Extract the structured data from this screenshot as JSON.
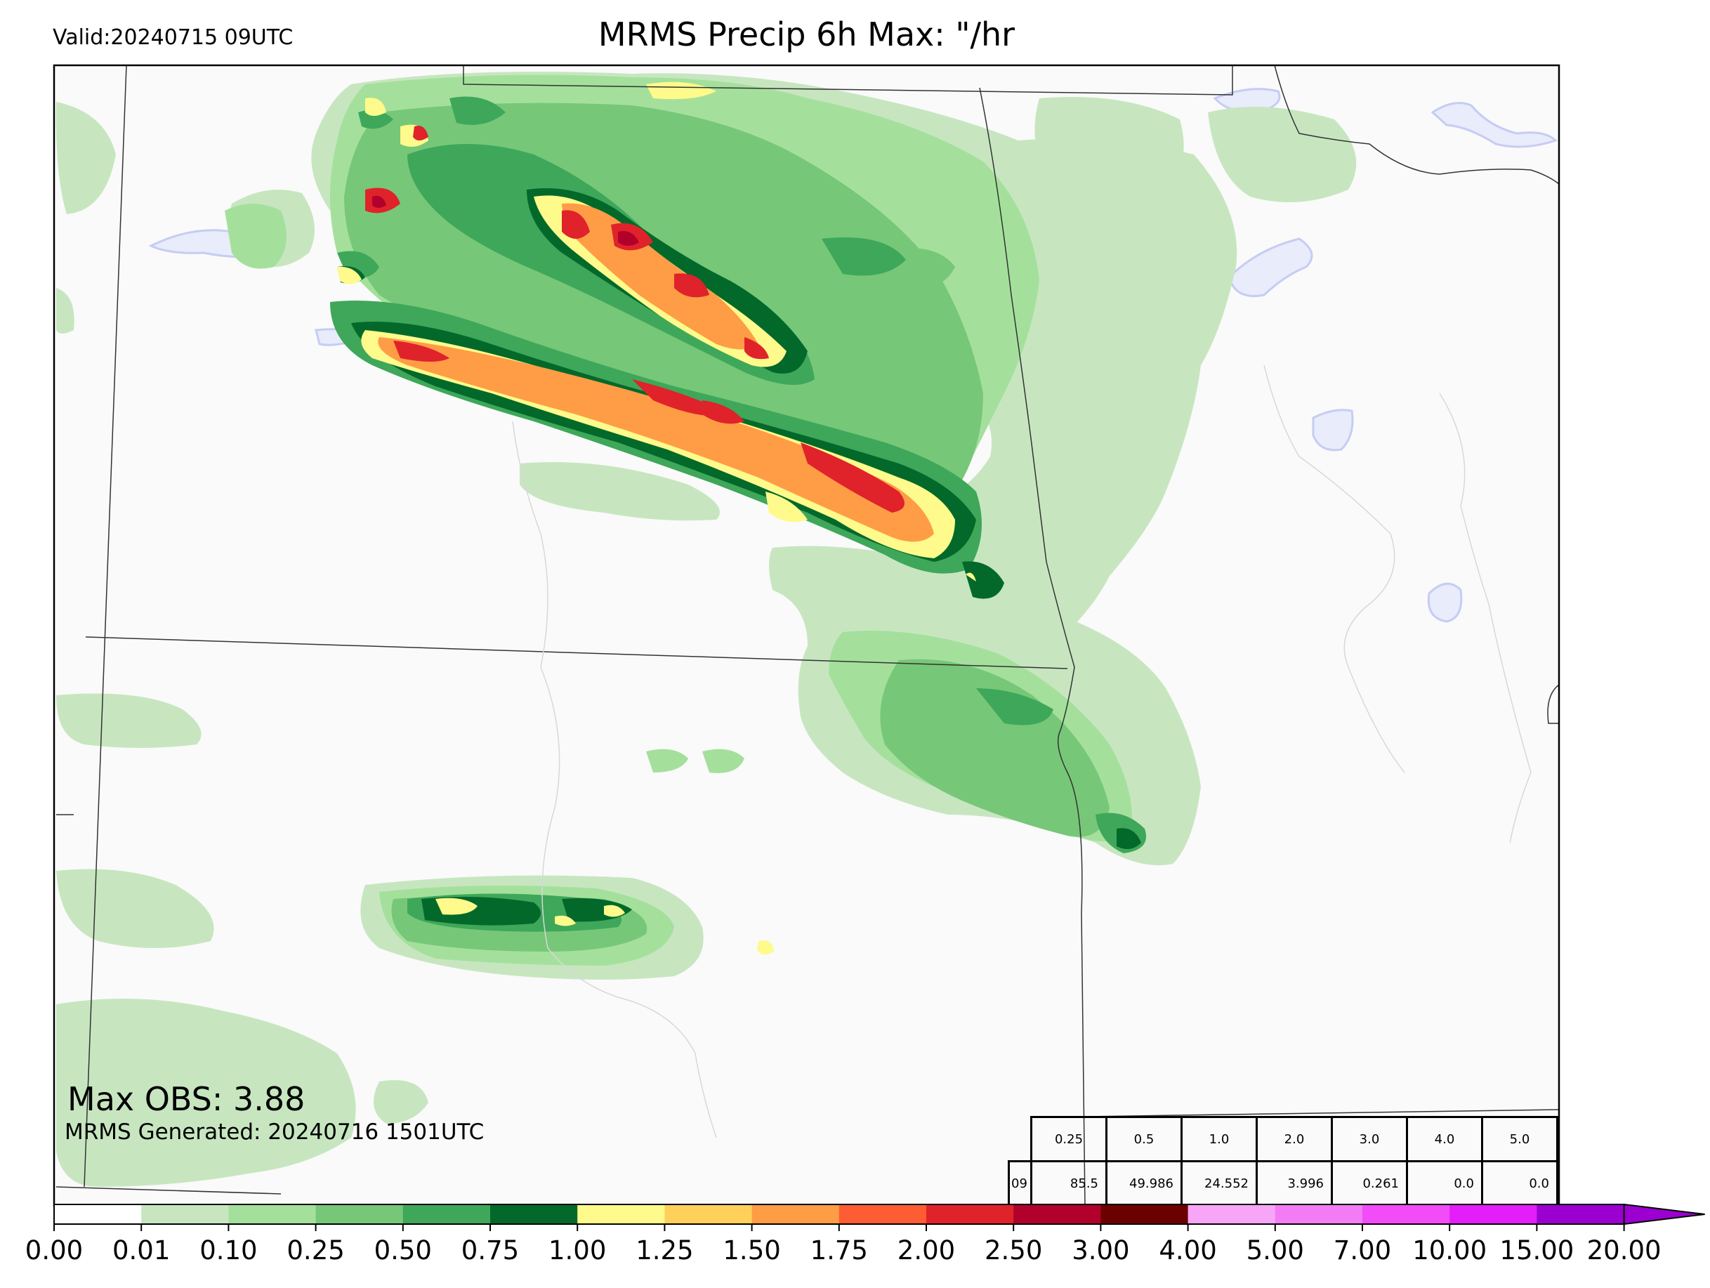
{
  "header": {
    "valid": "Valid:20240715 09UTC",
    "title": "MRMS Precip 6h Max: \"/hr"
  },
  "footer": {
    "max_obs": "Max OBS: 3.88",
    "generated": "MRMS Generated: 20240716 1501UTC"
  },
  "stats_table": {
    "thresholds": [
      "0.25",
      "0.5",
      "1.0",
      "2.0",
      "3.0",
      "4.0",
      "5.0"
    ],
    "row_label": "09",
    "values": [
      "85.5",
      "49.986",
      "24.552",
      "3.996",
      "0.261",
      "0.0",
      "0.0"
    ]
  },
  "colorbar": {
    "ticks": [
      "0.00",
      "0.01",
      "0.10",
      "0.25",
      "0.50",
      "0.75",
      "1.00",
      "1.25",
      "1.50",
      "1.75",
      "2.00",
      "2.50",
      "3.00",
      "4.00",
      "5.00",
      "7.00",
      "10.00",
      "15.00",
      "20.00"
    ],
    "colors": [
      "#ffffff",
      "#c7e6c0",
      "#a4e09c",
      "#77c778",
      "#3ea75a",
      "#03692a",
      "#fefa8b",
      "#ffd05a",
      "#fe9d45",
      "#fe5c33",
      "#e0222a",
      "#b1002c",
      "#6c0000",
      "#f7a5f7",
      "#f37cf4",
      "#f14cf7",
      "#e31ef9",
      "#9b00d0"
    ]
  },
  "map_palette": {
    "background": "#fafafa",
    "light_green": "#c7e6c0",
    "green": "#a4e09c",
    "mid_green": "#77c778",
    "dark_green": "#3ea75a",
    "deep_green": "#03692a",
    "yellow": "#fefa8b",
    "orange": "#fe9d45",
    "red": "#e0222a",
    "dark_red": "#b1002c",
    "water": "#e8ecfb"
  }
}
